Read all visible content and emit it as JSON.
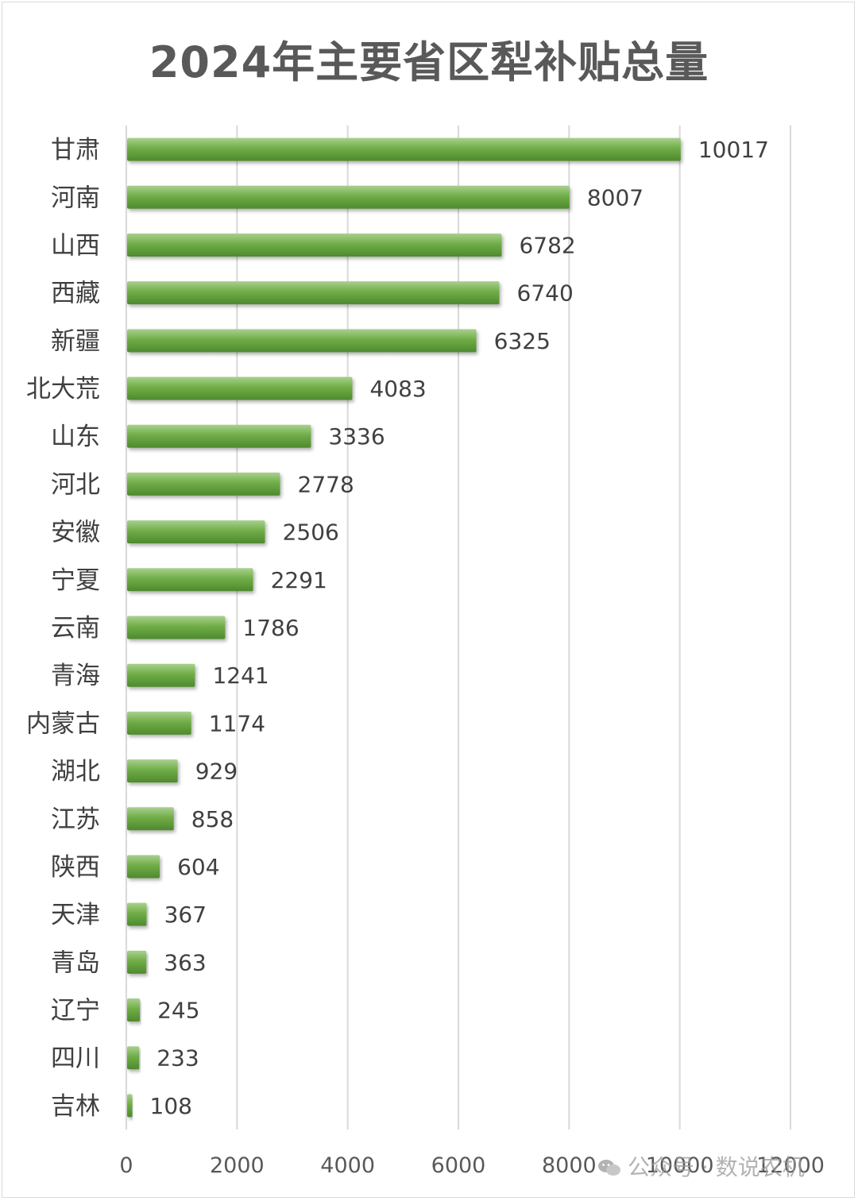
{
  "chart_data": {
    "type": "bar",
    "orientation": "horizontal",
    "title": "2024年主要省区犁补贴总量",
    "categories": [
      "甘肃",
      "河南",
      "山西",
      "西藏",
      "新疆",
      "北大荒",
      "山东",
      "河北",
      "安徽",
      "宁夏",
      "云南",
      "青海",
      "内蒙古",
      "湖北",
      "江苏",
      "陕西",
      "天津",
      "青岛",
      "辽宁",
      "四川",
      "吉林"
    ],
    "values": [
      10017,
      8007,
      6782,
      6740,
      6325,
      4083,
      3336,
      2778,
      2506,
      2291,
      1786,
      1241,
      1174,
      929,
      858,
      604,
      367,
      363,
      245,
      233,
      108
    ],
    "data_labels": [
      "10017",
      "8007",
      "6782",
      "6740",
      "6325",
      "4083",
      "3336",
      "2778",
      "2506",
      "2291",
      "1786",
      "1241",
      "1174",
      "929",
      "858",
      "604",
      "367",
      "363",
      "245",
      "233",
      "108"
    ],
    "xlim": [
      0,
      12000
    ],
    "xticks": [
      0,
      2000,
      4000,
      6000,
      8000,
      10000,
      12000
    ],
    "xtick_labels": [
      "0",
      "2000",
      "4000",
      "6000",
      "8000",
      "10000",
      "12000"
    ],
    "xlabel": "",
    "ylabel": "",
    "grid": "vertical",
    "legend": "none",
    "bar_color": "#70ad47"
  },
  "watermark": {
    "text": "公众号 · 数说农机",
    "icon": "wechat-icon"
  }
}
